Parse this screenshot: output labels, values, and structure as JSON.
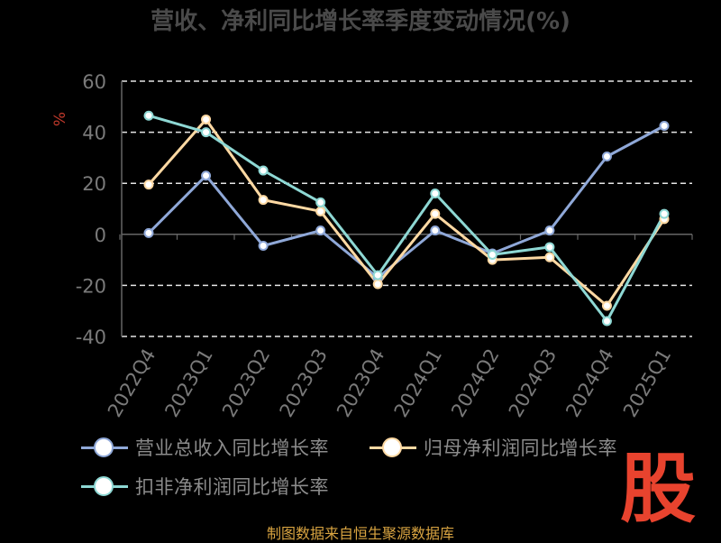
{
  "chart_data": {
    "type": "line",
    "title": "营收、净利同比增长率季度变动情况(%)",
    "ylabel": "%",
    "categories": [
      "2022Q4",
      "2023Q1",
      "2023Q2",
      "2023Q3",
      "2023Q4",
      "2024Q1",
      "2024Q2",
      "2024Q3",
      "2024Q4",
      "2025Q1"
    ],
    "ylim": [
      -40,
      60
    ],
    "yticks": [
      -40,
      -20,
      0,
      20,
      40,
      60
    ],
    "grid": true,
    "legend_position": "bottom",
    "series": [
      {
        "name": "营业总收入同比增长率",
        "color": "#8fa8d8",
        "values": [
          0.5,
          23,
          -4.5,
          1.5,
          -17,
          1.5,
          -7.5,
          1.5,
          30.5,
          42.5
        ]
      },
      {
        "name": "归母净利润同比增长率",
        "color": "#ffd9a3",
        "values": [
          19.5,
          45,
          13.5,
          9,
          -19.5,
          8,
          -10,
          -9,
          -28,
          6
        ]
      },
      {
        "name": "扣非净利润同比增长率",
        "color": "#8ed8d4",
        "values": [
          46.5,
          40,
          25,
          12.5,
          -16,
          16,
          -8,
          -5,
          -34,
          8
        ]
      }
    ]
  },
  "source_text": "制图数据来自恒生聚源数据库",
  "logo_text": "股"
}
